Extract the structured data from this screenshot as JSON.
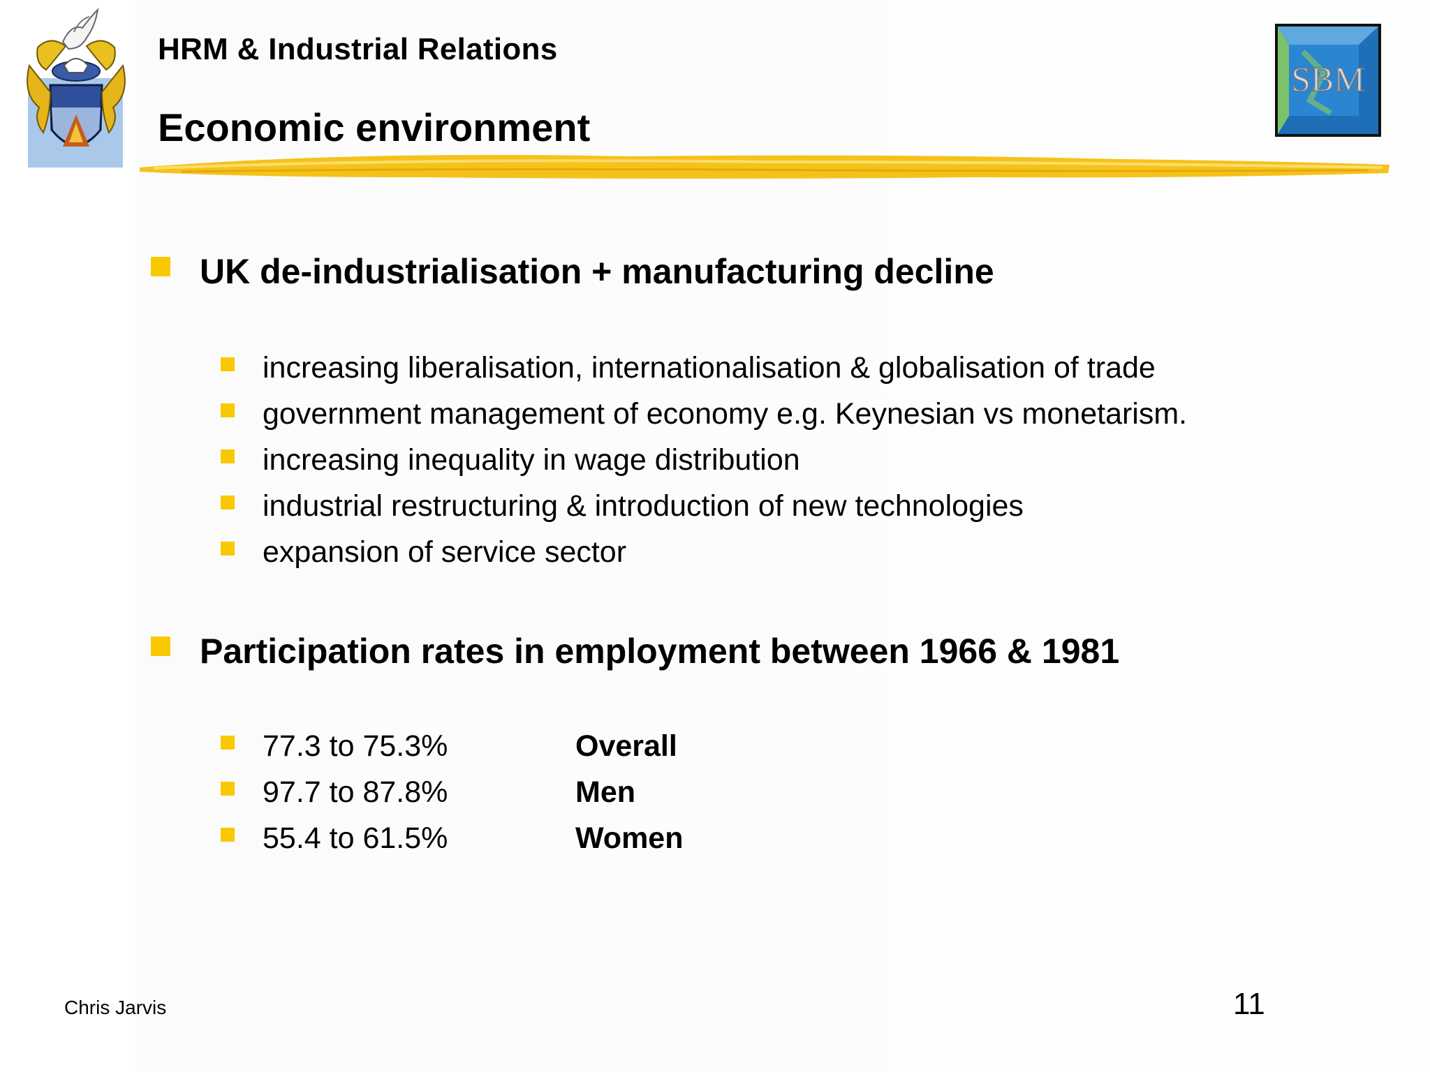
{
  "header": {
    "course_title": "HRM & Industrial Relations",
    "slide_title": "Economic environment",
    "logo_text": "SBM"
  },
  "content": {
    "section1": {
      "heading": "UK de-industrialisation + manufacturing decline",
      "items": [
        "increasing liberalisation, internationalisation & globalisation of trade",
        "government management of economy e.g. Keynesian vs monetarism.",
        "increasing inequality in wage distribution",
        "industrial restructuring & introduction of new technologies",
        "expansion of service sector"
      ]
    },
    "section2": {
      "heading": "Participation rates in employment between 1966 & 1981",
      "rows": [
        {
          "range": "77.3 to 75.3%",
          "group": "Overall"
        },
        {
          "range": "97.7 to 87.8%",
          "group": "Men"
        },
        {
          "range": "55.4 to 61.5%",
          "group": "Women"
        }
      ]
    }
  },
  "footer": {
    "author": "Chris Jarvis",
    "page_number": "11"
  },
  "colors": {
    "bullet": "#f8c900",
    "brush_stroke": "#f5c21a",
    "logo_blue": "#1e6fb8"
  }
}
